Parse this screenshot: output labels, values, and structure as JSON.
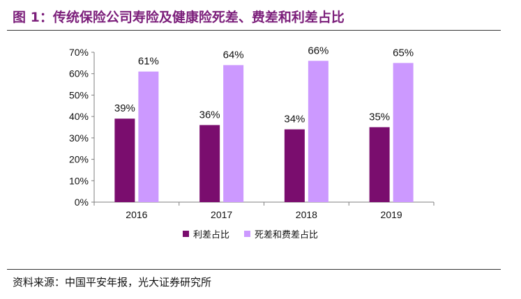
{
  "header": {
    "title": "图 1：传统保险公司寿险及健康险死差、费差和利差占比"
  },
  "footer": {
    "source": "资料来源：中国平安年报，光大证券研究所"
  },
  "chart_data": {
    "type": "bar",
    "title": "",
    "xlabel": "",
    "ylabel": "",
    "categories": [
      "2016",
      "2017",
      "2018",
      "2019"
    ],
    "series": [
      {
        "name": "利差占比",
        "values": [
          39,
          36,
          34,
          35
        ],
        "labels": [
          "39%",
          "36%",
          "34%",
          "35%"
        ],
        "color": "#7a0d6e"
      },
      {
        "name": "死差和费差占比",
        "values": [
          61,
          64,
          66,
          65
        ],
        "labels": [
          "61%",
          "64%",
          "66%",
          "65%"
        ],
        "color": "#cc99ff"
      }
    ],
    "ylim": [
      0,
      70
    ],
    "yticks": [
      "0%",
      "10%",
      "20%",
      "30%",
      "40%",
      "50%",
      "60%",
      "70%"
    ],
    "grid": false,
    "legend_position": "bottom"
  }
}
